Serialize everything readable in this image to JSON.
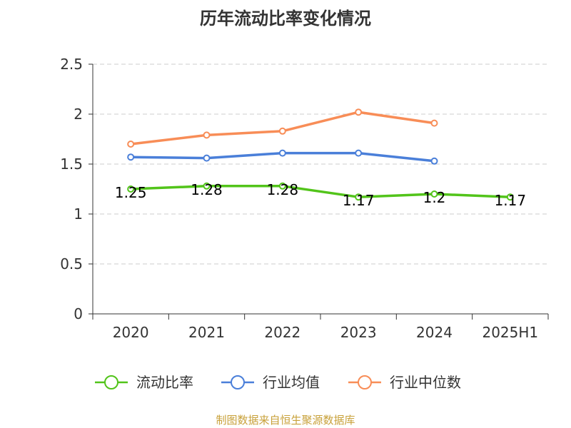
{
  "title": "历年流动比率变化情况",
  "source": "制图数据来自恒生聚源数据库",
  "colors": {
    "current_ratio": "#52c41a",
    "industry_avg": "#4a7fd9",
    "industry_median": "#f88d57",
    "axis": "#333333",
    "grid": "#cccccc",
    "text": "#333333"
  },
  "chart_data": {
    "type": "line",
    "categories": [
      "2020",
      "2021",
      "2022",
      "2023",
      "2024",
      "2025H1"
    ],
    "ylim": [
      0,
      2.5
    ],
    "yticks": [
      0,
      0.5,
      1,
      1.5,
      2,
      2.5
    ],
    "ytick_labels": [
      "0",
      "0.5",
      "1",
      "1.5",
      "2",
      "2.5"
    ],
    "grid": true,
    "legend_position": "bottom",
    "series": [
      {
        "name": "流动比率",
        "color_key": "current_ratio",
        "values": [
          1.25,
          1.28,
          1.28,
          1.17,
          1.2,
          1.17
        ],
        "data_labels": [
          "1.25",
          "1.28",
          "1.28",
          "1.17",
          "1.2",
          "1.17"
        ]
      },
      {
        "name": "行业均值",
        "color_key": "industry_avg",
        "values": [
          1.57,
          1.56,
          1.61,
          1.61,
          1.53,
          null
        ]
      },
      {
        "name": "行业中位数",
        "color_key": "industry_median",
        "values": [
          1.7,
          1.79,
          1.83,
          2.02,
          1.91,
          null
        ]
      }
    ]
  }
}
